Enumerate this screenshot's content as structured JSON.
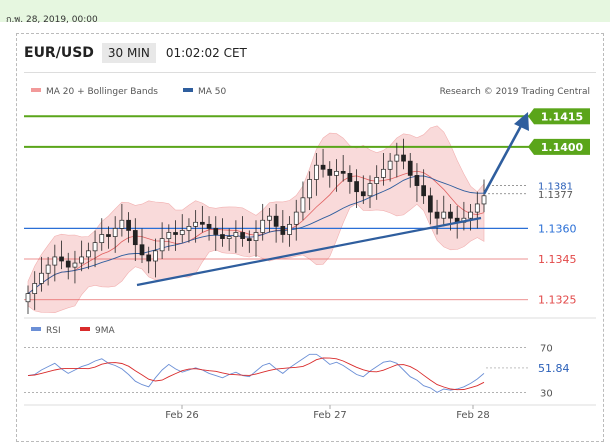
{
  "timestamp": "ก.พ. 28, 2019, 00:00",
  "pair": "EUR/USD",
  "timeframe": "30 MIN",
  "time": "01:02:02 CET",
  "legend": {
    "ma20": "MA 20 + Bollinger Bands",
    "ma50": "MA 50"
  },
  "credit": "Research © 2019 Trading Central",
  "colors": {
    "resistance": "#5aa51a",
    "support": "#2a6fd6",
    "target": "#e24848",
    "arrow": "#2f5e9e",
    "band": "#f7caca",
    "ma20": "#e06060",
    "ma50": "#2f5e9e"
  },
  "chart_data": [
    {
      "type": "line",
      "title": "",
      "ylim": [
        1.1318,
        1.1423
      ],
      "x_ticks": [
        "Feb 26",
        "Feb 27",
        "Feb 28"
      ],
      "levels": [
        {
          "label": "1.1415",
          "value": 1.1415,
          "kind": "resistance"
        },
        {
          "label": "1.1400",
          "value": 1.14,
          "kind": "resistance"
        },
        {
          "label": "1.1381",
          "value": 1.1381,
          "kind": "current"
        },
        {
          "label": "1.1377",
          "value": 1.1377,
          "kind": "current"
        },
        {
          "label": "1.1360",
          "value": 1.136,
          "kind": "pivot"
        },
        {
          "label": "1.1345",
          "value": 1.1345,
          "kind": "target"
        },
        {
          "label": "1.1325",
          "value": 1.1325,
          "kind": "target"
        }
      ],
      "close": [
        1.1328,
        1.1333,
        1.1338,
        1.1342,
        1.1346,
        1.1344,
        1.1341,
        1.1343,
        1.1346,
        1.1349,
        1.1353,
        1.1357,
        1.1356,
        1.136,
        1.1364,
        1.1359,
        1.1352,
        1.1347,
        1.1344,
        1.1349,
        1.1355,
        1.1358,
        1.1357,
        1.1359,
        1.1361,
        1.1363,
        1.1362,
        1.136,
        1.1357,
        1.1355,
        1.1356,
        1.1358,
        1.1355,
        1.1354,
        1.1358,
        1.1364,
        1.1366,
        1.1361,
        1.1357,
        1.1362,
        1.1368,
        1.1375,
        1.1384,
        1.1391,
        1.1389,
        1.1386,
        1.1388,
        1.1387,
        1.1383,
        1.1378,
        1.1376,
        1.1382,
        1.1385,
        1.1389,
        1.1393,
        1.1396,
        1.1393,
        1.1386,
        1.1381,
        1.1376,
        1.1368,
        1.1365,
        1.1368,
        1.1365,
        1.1363,
        1.1365,
        1.1368,
        1.1372,
        1.1376
      ],
      "series": [
        {
          "name": "MA 20 + Bollinger Bands"
        },
        {
          "name": "MA 50"
        }
      ],
      "rsi": {
        "ylim": [
          25,
          75
        ],
        "levels": [
          70,
          30
        ],
        "current": "51.84",
        "legend": [
          "RSI",
          "9MA"
        ],
        "values": [
          45,
          46,
          50,
          53,
          56,
          51,
          47,
          50,
          53,
          55,
          58,
          60,
          56,
          54,
          51,
          46,
          40,
          37,
          35,
          43,
          50,
          55,
          51,
          48,
          50,
          52,
          50,
          47,
          45,
          43,
          46,
          48,
          45,
          44,
          49,
          54,
          56,
          51,
          47,
          52,
          56,
          60,
          64,
          64,
          60,
          55,
          57,
          54,
          50,
          46,
          44,
          49,
          53,
          57,
          58,
          56,
          50,
          44,
          41,
          36,
          34,
          30,
          33,
          32,
          33,
          35,
          38,
          42,
          47
        ]
      }
    }
  ]
}
